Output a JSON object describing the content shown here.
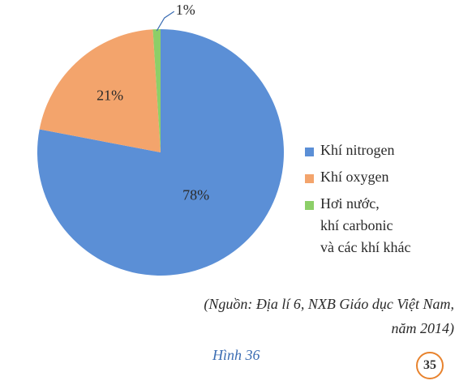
{
  "chart_data": {
    "type": "pie",
    "categories": [
      "Khí nitrogen",
      "Khí oxygen",
      "Hơi nước,\nkhí carbonic\nvà các khí khác"
    ],
    "values": [
      78,
      21,
      1
    ],
    "value_labels": [
      "78%",
      "21%",
      "1%"
    ],
    "colors": [
      "#5b8fd6",
      "#f3a46c",
      "#8ccf68"
    ],
    "legend": "right",
    "source": "(Nguồn: Địa lí 6, NXB Giáo dục Việt Nam,\nnăm 2014)",
    "caption": "Hình 36",
    "page_number": "35"
  }
}
